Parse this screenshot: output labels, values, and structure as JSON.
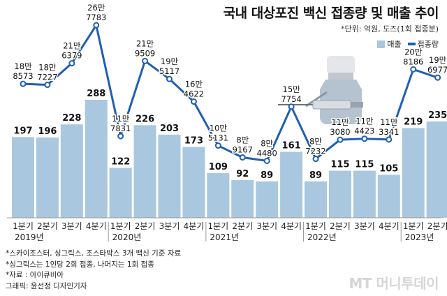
{
  "title": "국내 대상포진 백신 접종량 및 매출 추이",
  "unit_note": "*단위: 억원, 도즈(1회 접종분)",
  "legend": {
    "bar": "매출",
    "line": "접종량"
  },
  "colors": {
    "bar": "#a9c8df",
    "line": "#1f5fb4"
  },
  "chart_data": {
    "type": "bar",
    "title": "국내 대상포진 백신 접종량 및 매출 추이",
    "categories": [
      "1분기",
      "2분기",
      "3분기",
      "4분기",
      "1분기",
      "2분기",
      "3분기",
      "4분기",
      "1분기",
      "2분기",
      "3분기",
      "4분기",
      "1분기",
      "2분기",
      "3분기",
      "4분기",
      "1분기",
      "2분기"
    ],
    "years": [
      {
        "label": "2019년",
        "start": 0,
        "end": 3
      },
      {
        "label": "2020년",
        "start": 4,
        "end": 7
      },
      {
        "label": "2021년",
        "start": 8,
        "end": 11
      },
      {
        "label": "2022년",
        "start": 12,
        "end": 15
      },
      {
        "label": "2023년",
        "start": 16,
        "end": 17
      }
    ],
    "series": [
      {
        "name": "매출",
        "type": "bar",
        "values": [
          197,
          196,
          228,
          288,
          122,
          226,
          203,
          173,
          109,
          92,
          89,
          161,
          89,
          115,
          115,
          105,
          219,
          235
        ],
        "labels": [
          "197",
          "196",
          "228",
          "288",
          "122",
          "226",
          "203",
          "173",
          "109",
          "92",
          "89",
          "161",
          "89",
          "115",
          "115",
          "105",
          "219",
          "235"
        ]
      },
      {
        "name": "접종량",
        "type": "line",
        "values": [
          188573,
          187227,
          216379,
          267783,
          117831,
          219509,
          195117,
          164622,
          105131,
          89167,
          84480,
          157754,
          87232,
          113080,
          114423,
          113341,
          208186,
          196977
        ],
        "labels_top": [
          "18만",
          "18만",
          "21만",
          "26만",
          "11만",
          "21만",
          "19만",
          "16만",
          "10만",
          "8만",
          "8만",
          "15만",
          "8만",
          "11만",
          "11만",
          "11만",
          "20만",
          "19만"
        ],
        "labels_bottom": [
          "8573",
          "7227",
          "6379",
          "7783",
          "7831",
          "9509",
          "5117",
          "4622",
          "5131",
          "9167",
          "4480",
          "7754",
          "7232",
          "3080",
          "4423",
          "3341",
          "8186",
          "6977"
        ]
      }
    ],
    "bar_ylim": [
      0,
      300
    ],
    "line_ylim": [
      0,
      300000
    ],
    "grid": false,
    "legend_position": "top-right"
  },
  "notes": [
    "*스카이조스터, 싱그릭스, 조스타박스 3개 백신 기준 자료",
    "*싱그릭스는 1인당 2회 접종, 나머지는 1회 접종",
    "*자료 : 아이큐비아",
    "그래픽: 윤선정 디자인기자"
  ],
  "watermark": "MT 머니투데이"
}
